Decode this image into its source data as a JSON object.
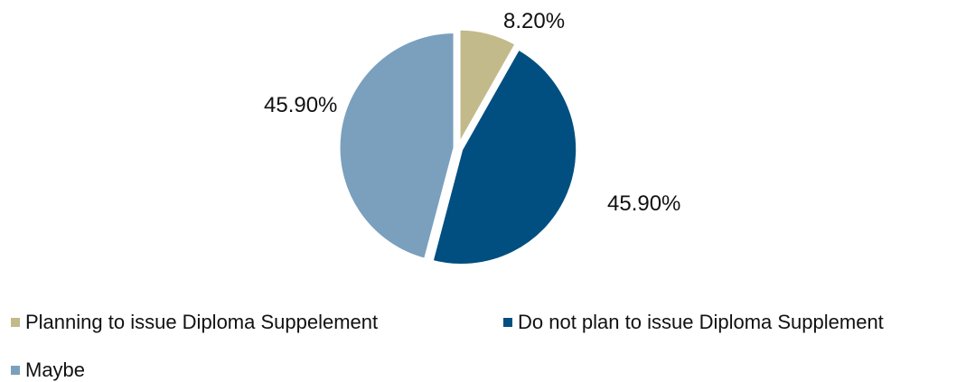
{
  "chart_data": {
    "type": "pie",
    "categories": [
      "Planning to issue Diploma Suppelement",
      "Do not plan to issue Diploma Supplement",
      "Maybe"
    ],
    "values": [
      8.2,
      45.9,
      45.9
    ],
    "data_labels": [
      "8.20%",
      "45.90%",
      "45.90%"
    ],
    "colors": [
      "#c3ba8b",
      "#004f80",
      "#7aa0bd"
    ],
    "legend_position": "bottom",
    "start_angle_deg": 0,
    "direction": "clockwise"
  }
}
